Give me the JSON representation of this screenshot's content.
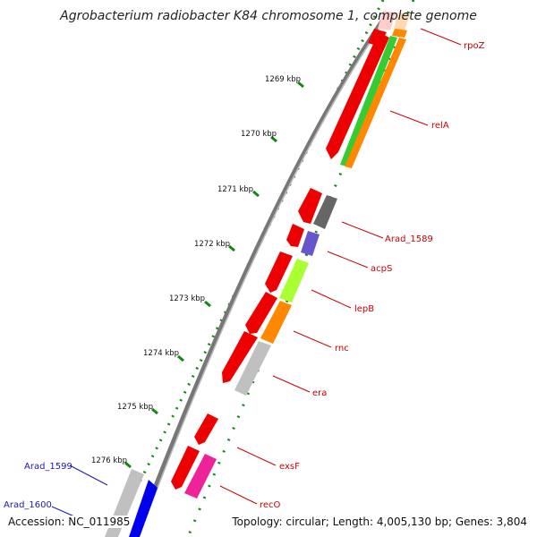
{
  "header": {
    "title": "Agrobacterium radiobacter K84 chromosome 1, complete genome"
  },
  "footer": {
    "accession": "Accession: NC_011985",
    "stats": "Topology: circular; Length: 4,005,130 bp; Genes: 3,804"
  },
  "scale": {
    "ticks": [
      "1269 kbp",
      "1270 kbp",
      "1271 kbp",
      "1272 kbp",
      "1273 kbp",
      "1274 kbp",
      "1275 kbp",
      "1276 kbp"
    ]
  },
  "genes": {
    "rpoZ": "rpoZ",
    "relA": "relA",
    "arad1589": "Arad_1589",
    "acpS": "acpS",
    "lepB": "lepB",
    "rnc": "rnc",
    "era": "era",
    "exsF": "exsF",
    "recO": "recO",
    "arad1599": "Arad_1599",
    "arad1600": "Arad_1600"
  },
  "colors": {
    "cds": "#ee0000",
    "rrna": "#33cc33",
    "orange": "#ff8800",
    "gray_dark": "#666666",
    "purple": "#6655cc",
    "lime": "#aaff33",
    "light_gray": "#c0c0c0",
    "magenta": "#ee2299",
    "blue": "#0000ee",
    "backbone": "#777777",
    "ticks": "#118811"
  }
}
